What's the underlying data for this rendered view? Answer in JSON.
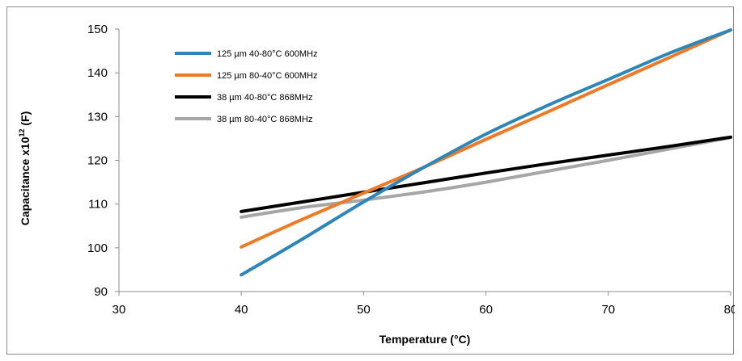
{
  "chart_data": {
    "type": "line",
    "title": "",
    "xlabel": "Temperature (°C)",
    "ylabel_main": "Capacitance x10",
    "ylabel_sup": "12",
    "ylabel_unit": " (F)",
    "xlim": [
      30,
      80
    ],
    "ylim": [
      90,
      150
    ],
    "xticks": [
      "30",
      "40",
      "50",
      "60",
      "70",
      "80"
    ],
    "yticks": [
      "90",
      "100",
      "110",
      "120",
      "130",
      "140",
      "150"
    ],
    "grid": false,
    "legend_position": "top-left",
    "series": [
      {
        "name": "125 µm 40-80°C 600MHz",
        "color": "#2e86b8",
        "x": [
          40,
          45,
          50,
          55,
          60,
          65,
          70,
          75,
          80
        ],
        "y": [
          93.8,
          102.0,
          110.5,
          118.5,
          126.0,
          132.5,
          138.5,
          144.5,
          149.8
        ]
      },
      {
        "name": "125 µm 80-40°C 600MHz",
        "color": "#ef7a26",
        "x": [
          40,
          45,
          50,
          55,
          60,
          65,
          70,
          75,
          80
        ],
        "y": [
          100.2,
          106.5,
          112.5,
          118.5,
          124.8,
          131.0,
          137.3,
          143.5,
          149.8
        ]
      },
      {
        "name": "38 µm 40-80°C 868MHz",
        "color": "#000000",
        "x": [
          40,
          45,
          50,
          55,
          60,
          65,
          70,
          75,
          80
        ],
        "y": [
          108.3,
          110.5,
          112.7,
          114.9,
          117.1,
          119.2,
          121.2,
          123.2,
          125.3
        ]
      },
      {
        "name": "38 µm 80-40°C 868MHz",
        "color": "#a6a6a6",
        "x": [
          40,
          45,
          50,
          55,
          60,
          65,
          70,
          75,
          80
        ],
        "y": [
          107.0,
          109.2,
          110.9,
          112.8,
          115.0,
          117.5,
          120.0,
          122.6,
          125.2
        ]
      }
    ]
  }
}
